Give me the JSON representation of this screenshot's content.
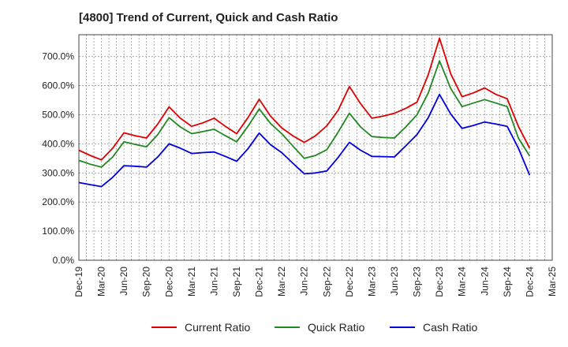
{
  "chart_data": {
    "type": "line",
    "title": "[4800]  Trend of Current, Quick and Cash Ratio",
    "xlabel": "",
    "ylabel": "",
    "ylim": [
      0,
      775
    ],
    "y_ticks": [
      "0.0%",
      "100.0%",
      "200.0%",
      "300.0%",
      "400.0%",
      "500.0%",
      "600.0%",
      "700.0%"
    ],
    "y_tick_values": [
      0,
      100,
      200,
      300,
      400,
      500,
      600,
      700
    ],
    "x_ticks": [
      "Dec-19",
      "Mar-20",
      "Jun-20",
      "Sep-20",
      "Dec-20",
      "Mar-21",
      "Jun-21",
      "Sep-21",
      "Dec-21",
      "Mar-22",
      "Jun-22",
      "Sep-22",
      "Dec-22",
      "Mar-23",
      "Jun-23",
      "Sep-23",
      "Dec-23",
      "Mar-24",
      "Jun-24",
      "Sep-24",
      "Dec-24",
      "Mar-25"
    ],
    "grid": true,
    "legend_position": "bottom",
    "series": [
      {
        "name": "Current Ratio",
        "color": "#dd0000",
        "values": [
          378,
          360,
          345,
          385,
          438,
          428,
          420,
          468,
          527,
          488,
          460,
          472,
          488,
          460,
          435,
          490,
          553,
          495,
          455,
          427,
          405,
          428,
          462,
          515,
          597,
          538,
          488,
          495,
          505,
          522,
          543,
          638,
          763,
          640,
          562,
          575,
          592,
          570,
          555,
          460,
          385
        ]
      },
      {
        "name": "Quick Ratio",
        "color": "#228822",
        "values": [
          343,
          330,
          320,
          355,
          407,
          398,
          390,
          432,
          490,
          458,
          435,
          442,
          450,
          428,
          407,
          460,
          520,
          470,
          435,
          392,
          350,
          360,
          380,
          440,
          505,
          458,
          425,
          422,
          420,
          458,
          500,
          575,
          685,
          590,
          528,
          540,
          552,
          540,
          528,
          420,
          358
        ]
      },
      {
        "name": "Cash Ratio",
        "color": "#0000dd",
        "values": [
          267,
          260,
          253,
          285,
          325,
          323,
          320,
          355,
          400,
          385,
          367,
          370,
          372,
          357,
          340,
          383,
          437,
          397,
          370,
          333,
          297,
          300,
          307,
          353,
          405,
          378,
          357,
          356,
          355,
          393,
          432,
          490,
          570,
          502,
          453,
          463,
          475,
          468,
          460,
          385,
          292
        ]
      }
    ]
  }
}
